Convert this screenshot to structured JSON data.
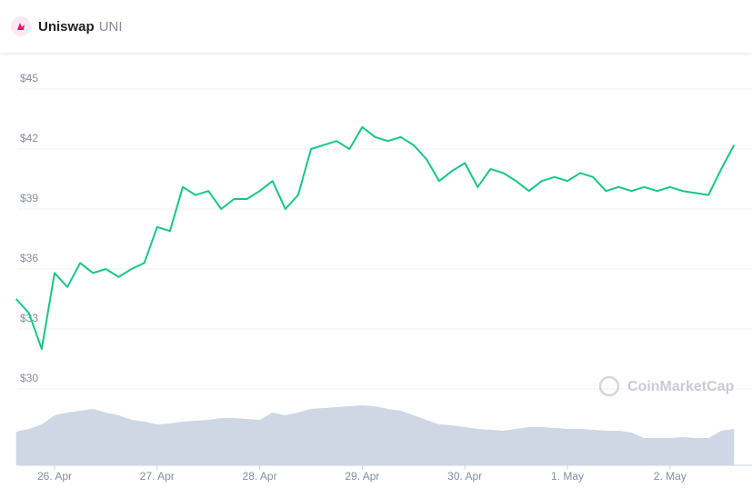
{
  "header": {
    "name": "Uniswap",
    "symbol": "UNI"
  },
  "watermark": "CoinMarketCap",
  "chart_data": {
    "type": "line",
    "categories": [
      null,
      null,
      null,
      "26. Apr",
      null,
      null,
      null,
      null,
      null,
      null,
      null,
      "27. Apr",
      null,
      null,
      null,
      null,
      null,
      null,
      null,
      "28. Apr",
      null,
      null,
      null,
      null,
      null,
      null,
      null,
      "29. Apr",
      null,
      null,
      null,
      null,
      null,
      null,
      null,
      "30. Apr",
      null,
      null,
      null,
      null,
      null,
      null,
      null,
      "1. May",
      null,
      null,
      null,
      null,
      null,
      null,
      null,
      "2. May",
      null,
      null,
      null,
      null,
      null
    ],
    "values": [
      34.5,
      33.8,
      32.0,
      35.8,
      35.1,
      36.3,
      35.8,
      36.0,
      35.6,
      36.0,
      36.3,
      38.1,
      37.9,
      40.1,
      39.7,
      39.9,
      39.0,
      39.5,
      39.5,
      39.9,
      40.4,
      39.0,
      39.7,
      42.0,
      42.2,
      42.4,
      42.0,
      43.1,
      42.6,
      42.4,
      42.6,
      42.2,
      41.5,
      40.4,
      40.9,
      41.3,
      40.1,
      41.0,
      40.8,
      40.4,
      39.9,
      40.4,
      40.6,
      40.4,
      40.8,
      40.6,
      39.9,
      40.1,
      39.9,
      40.1,
      39.9,
      40.1,
      39.9,
      39.8,
      39.7,
      41.0,
      42.2
    ],
    "color": "#16c784",
    "volume": {
      "color": "#cfd6e4",
      "values": [
        37,
        40,
        45,
        55,
        58,
        60,
        62,
        58,
        55,
        50,
        48,
        45,
        46,
        48,
        49,
        50,
        52,
        52,
        51,
        50,
        58,
        55,
        58,
        62,
        63,
        64,
        65,
        66,
        65,
        62,
        60,
        55,
        50,
        45,
        44,
        42,
        40,
        39,
        38,
        40,
        42,
        42,
        41,
        40,
        40,
        39,
        38,
        38,
        36,
        30,
        30,
        30,
        31,
        30,
        30,
        38,
        40
      ]
    },
    "ylim": [
      30,
      45
    ],
    "yticks": [
      {
        "value": 30,
        "label": "$30"
      },
      {
        "value": 33,
        "label": "$33"
      },
      {
        "value": 36,
        "label": "$36"
      },
      {
        "value": 39,
        "label": "$39"
      },
      {
        "value": 42,
        "label": "$42"
      },
      {
        "value": 45,
        "label": "$45"
      }
    ],
    "grid": true
  }
}
